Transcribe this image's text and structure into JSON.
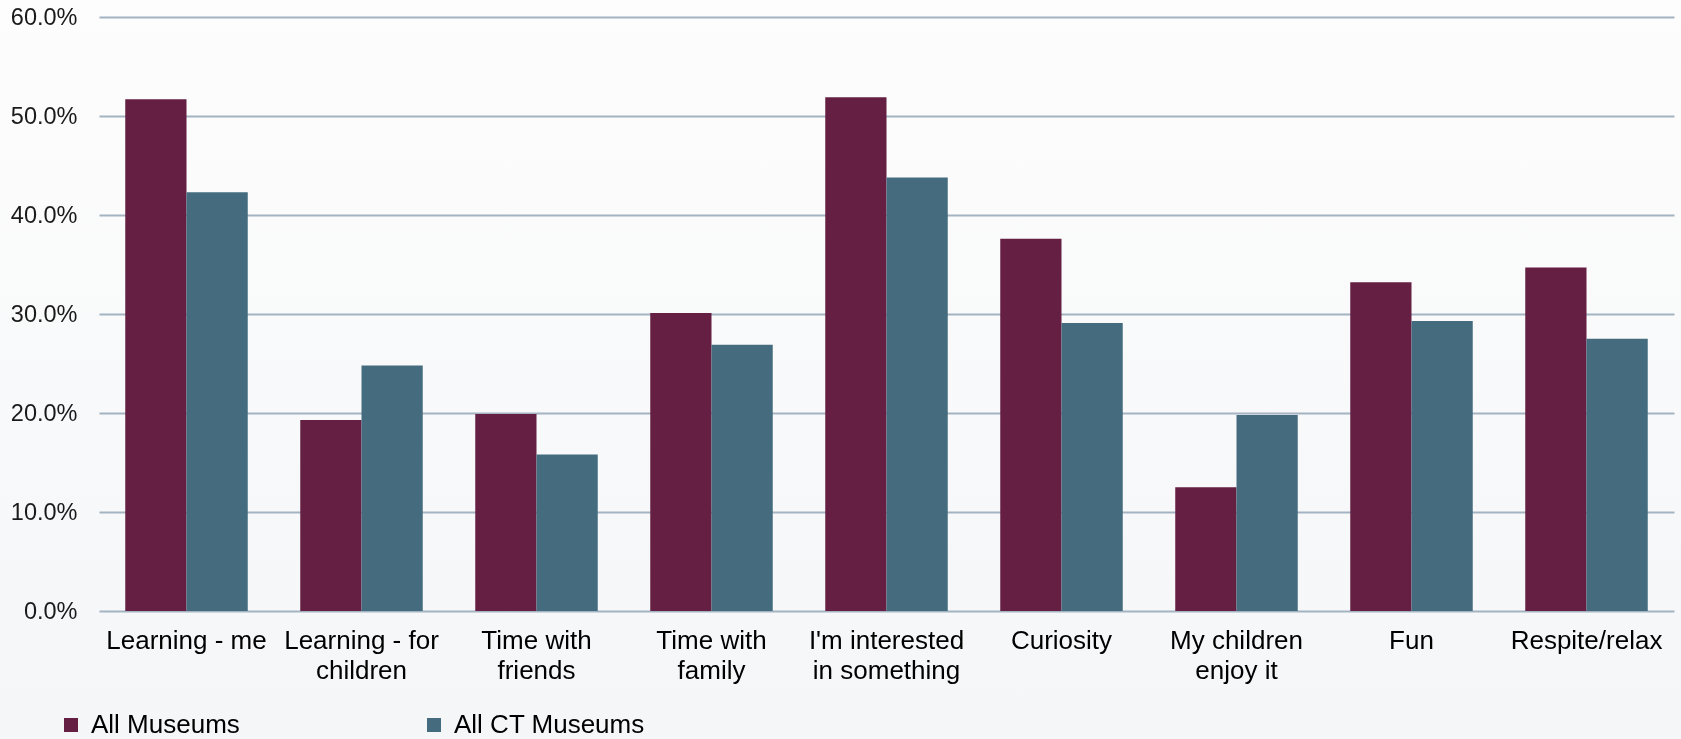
{
  "chart_data": {
    "type": "bar",
    "categories": [
      "Learning - me",
      "Learning - for children",
      "Time with friends",
      "Time with family",
      "I'm interested in something",
      "Curiosity",
      "My children enjoy it",
      "Fun",
      "Respite/relax"
    ],
    "series": [
      {
        "name": "All Museums",
        "color": "#651f43",
        "values": [
          51.7,
          19.3,
          19.9,
          30.1,
          51.9,
          37.6,
          12.5,
          33.2,
          34.7
        ]
      },
      {
        "name": "All CT Museums",
        "color": "#456c7e",
        "values": [
          42.3,
          24.8,
          15.8,
          26.9,
          43.8,
          29.1,
          19.8,
          29.3,
          27.5
        ]
      }
    ],
    "ylim": [
      0,
      60
    ],
    "yticks": [
      {
        "value": 0,
        "label": "0.0%"
      },
      {
        "value": 10,
        "label": "10.0%"
      },
      {
        "value": 20,
        "label": "20.0%"
      },
      {
        "value": 30,
        "label": "30.0%"
      },
      {
        "value": 40,
        "label": "40.0%"
      },
      {
        "value": 50,
        "label": "50.0%"
      },
      {
        "value": 60,
        "label": "60.0%"
      }
    ],
    "grid": "y",
    "legend": "bottom left"
  }
}
